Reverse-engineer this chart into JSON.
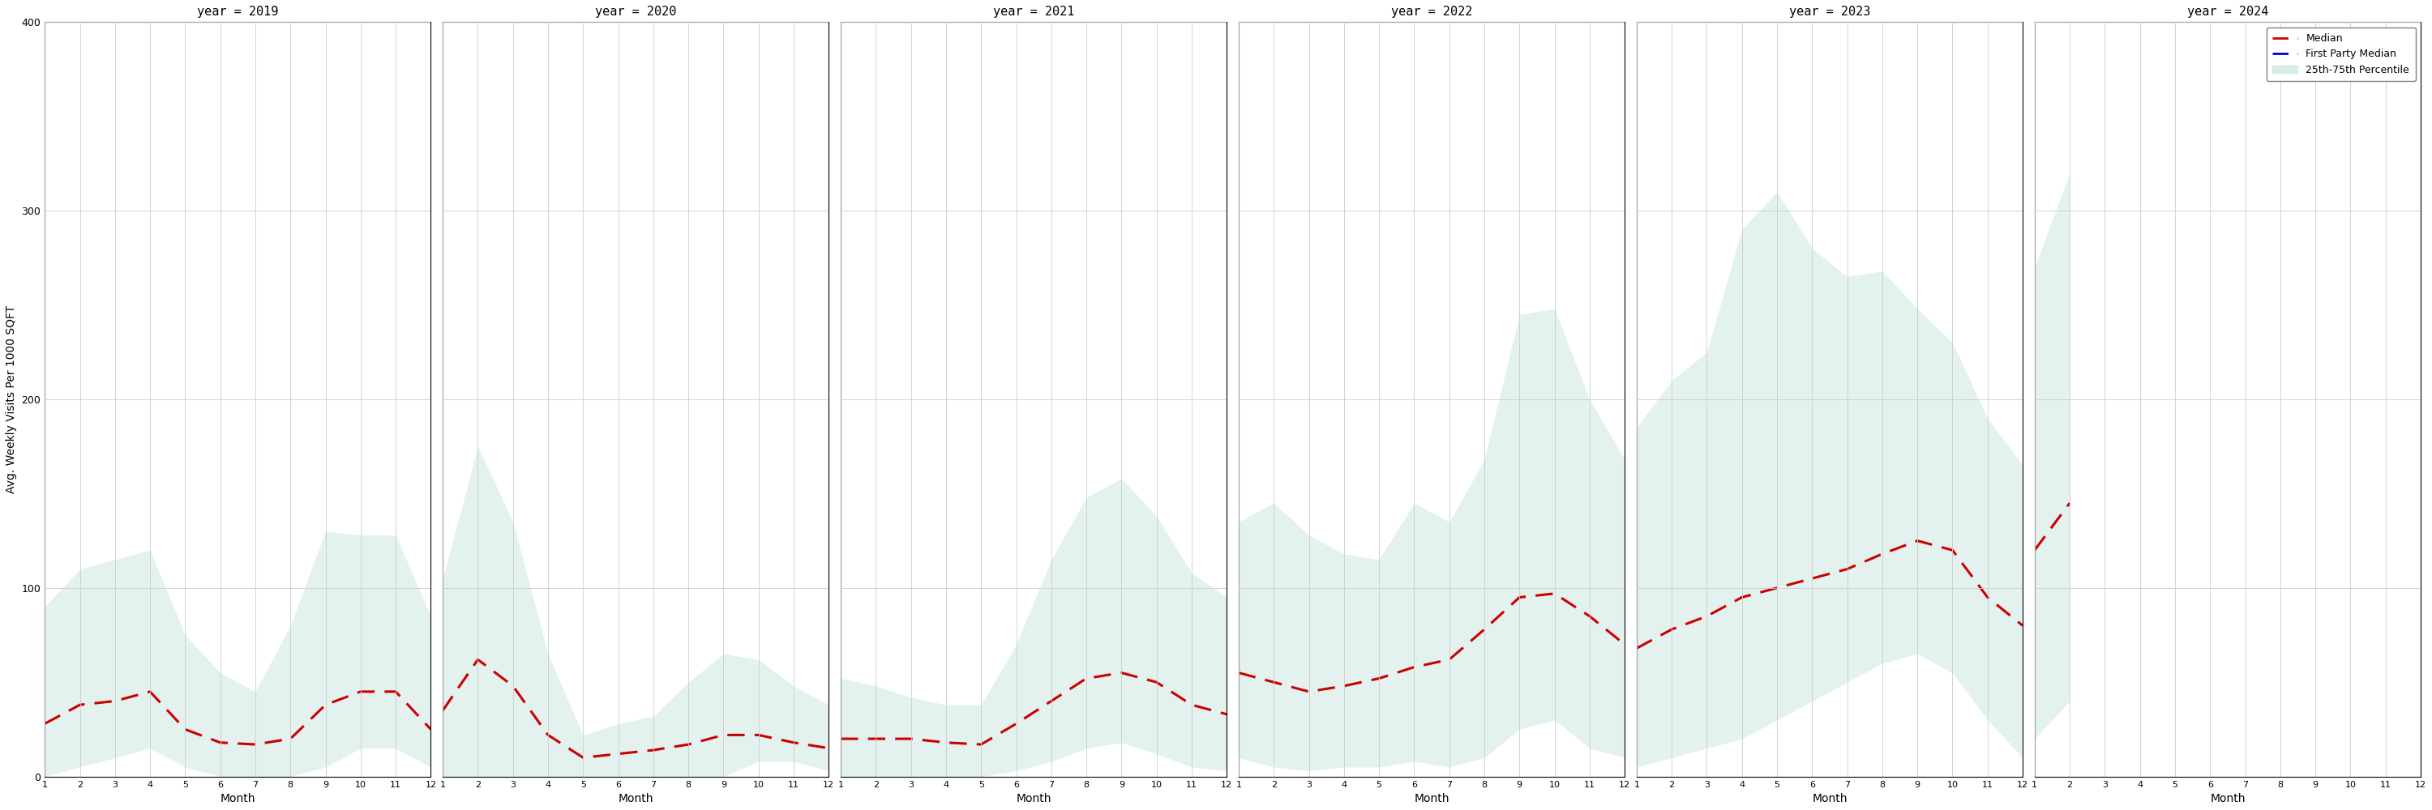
{
  "years": [
    2019,
    2020,
    2021,
    2022,
    2023,
    2024
  ],
  "months": [
    1,
    2,
    3,
    4,
    5,
    6,
    7,
    8,
    9,
    10,
    11,
    12
  ],
  "median": {
    "2019": [
      28,
      38,
      40,
      45,
      25,
      18,
      17,
      20,
      38,
      45,
      45,
      25
    ],
    "2020": [
      35,
      62,
      48,
      22,
      10,
      12,
      14,
      17,
      22,
      22,
      18,
      15
    ],
    "2021": [
      20,
      20,
      20,
      18,
      17,
      28,
      40,
      52,
      55,
      50,
      38,
      33
    ],
    "2022": [
      55,
      50,
      45,
      48,
      52,
      58,
      62,
      78,
      95,
      97,
      85,
      70
    ],
    "2023": [
      68,
      78,
      85,
      95,
      100,
      105,
      110,
      118,
      125,
      120,
      95,
      80
    ],
    "2024": [
      120,
      145,
      null,
      null,
      null,
      null,
      null,
      null,
      null,
      null,
      null,
      null
    ]
  },
  "p25": {
    "2019": [
      0,
      5,
      10,
      15,
      5,
      0,
      0,
      0,
      5,
      15,
      15,
      5
    ],
    "2020": [
      0,
      0,
      0,
      0,
      0,
      0,
      0,
      0,
      0,
      8,
      8,
      3
    ],
    "2021": [
      0,
      0,
      0,
      0,
      0,
      3,
      8,
      15,
      18,
      12,
      5,
      3
    ],
    "2022": [
      10,
      5,
      3,
      5,
      5,
      8,
      5,
      10,
      25,
      30,
      15,
      10
    ],
    "2023": [
      5,
      10,
      15,
      20,
      30,
      40,
      50,
      60,
      65,
      55,
      30,
      10
    ],
    "2024": [
      20,
      40,
      null,
      null,
      null,
      null,
      null,
      null,
      null,
      null,
      null,
      null
    ]
  },
  "p75": {
    "2019": [
      90,
      110,
      115,
      120,
      75,
      55,
      45,
      80,
      130,
      128,
      128,
      85
    ],
    "2020": [
      105,
      175,
      135,
      65,
      22,
      28,
      32,
      50,
      65,
      62,
      48,
      38
    ],
    "2021": [
      52,
      48,
      42,
      38,
      38,
      70,
      115,
      148,
      158,
      138,
      108,
      95
    ],
    "2022": [
      135,
      145,
      128,
      118,
      115,
      145,
      135,
      168,
      245,
      248,
      200,
      168
    ],
    "2023": [
      185,
      210,
      225,
      290,
      310,
      280,
      265,
      268,
      248,
      230,
      190,
      165
    ],
    "2024": [
      270,
      320,
      null,
      null,
      null,
      null,
      null,
      null,
      null,
      null,
      null,
      null
    ]
  },
  "ylim": [
    0,
    400
  ],
  "yticks": [
    0,
    100,
    200,
    300,
    400
  ],
  "fill_color": "#c8e6e0",
  "fill_alpha": 0.5,
  "median_color": "#cc0000",
  "fp_color": "#0000cc",
  "title_fontsize": 11,
  "ylabel": "Avg. Weekly Visits Per 1000 SQFT",
  "xlabel": "Month",
  "background_color": "#ffffff"
}
